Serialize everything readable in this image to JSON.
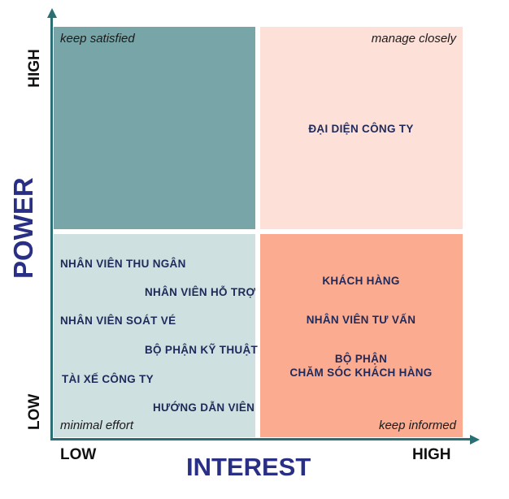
{
  "quadrants": {
    "top_left": {
      "label": "keep satisfied",
      "color": "#78a6a8",
      "items": []
    },
    "top_right": {
      "label": "manage closely",
      "color": "#fde0d8",
      "items": [
        "ĐẠI DIỆN CÔNG TY"
      ]
    },
    "bottom_left": {
      "label": "minimal effort",
      "color": "#cfe0e1",
      "items": [
        "NHÂN VIÊN THU NGÂN",
        "NHÂN VIÊN HỖ TRỢ",
        "NHÂN VIÊN SOÁT VÉ",
        "BỘ PHẬN KỸ THUẬT",
        "TÀI XẾ CÔNG TY",
        "HƯỚNG DẪN VIÊN"
      ]
    },
    "bottom_right": {
      "label": "keep informed",
      "color": "#fbab8f",
      "items": [
        "KHÁCH HÀNG",
        "NHÂN VIÊN TƯ VẤN",
        "BỘ PHẬN",
        "CHĂM SÓC KHÁCH HÀNG"
      ]
    }
  },
  "y_axis": {
    "title": "POWER",
    "low": "LOW",
    "high": "HIGH"
  },
  "x_axis": {
    "title": "INTEREST",
    "low": "LOW",
    "high": "HIGH"
  },
  "colors": {
    "axis": "#2a6f73",
    "title": "#2a2f86",
    "item_text": "#1f2a5a"
  }
}
